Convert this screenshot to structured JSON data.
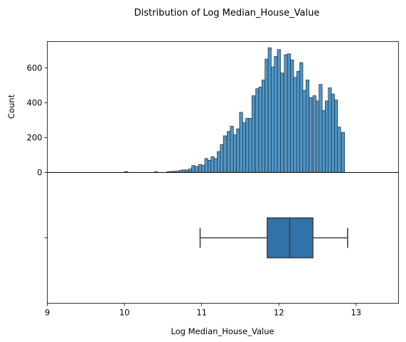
{
  "chart_data": {
    "type": "bar",
    "title": "Distribution of Log Median_House_Value",
    "colors": {
      "hist_fill": "#4c96c9",
      "box_fill": "#3173a8",
      "line": "#404040"
    },
    "histogram": {
      "type": "histogram",
      "ylabel": "Count",
      "xlabel": "",
      "xlim": [
        9.0,
        13.55
      ],
      "ylim": [
        0,
        750
      ],
      "yticks": [
        0,
        200,
        400,
        600
      ],
      "yticklabels": [
        "0",
        "200",
        "400",
        "600"
      ],
      "bin_width": 0.0412,
      "bin_starts": [
        10.0,
        10.39,
        10.55,
        10.59,
        10.63,
        10.67,
        10.71,
        10.75,
        10.79,
        10.83,
        10.87,
        10.91,
        10.96,
        11.0,
        11.04,
        11.08,
        11.12,
        11.16,
        11.2,
        11.24,
        11.28,
        11.33,
        11.37,
        11.41,
        11.45,
        11.49,
        11.53,
        11.57,
        11.61,
        11.65,
        11.7,
        11.74,
        11.78,
        11.82,
        11.86,
        11.9,
        11.94,
        11.98,
        12.02,
        12.07,
        12.11,
        12.15,
        12.19,
        12.23,
        12.27,
        12.31,
        12.35,
        12.39,
        12.44,
        12.48,
        12.52,
        12.56,
        12.6,
        12.64,
        12.68,
        12.72,
        12.76,
        12.81,
        12.85
      ],
      "counts": [
        5,
        4,
        5,
        6,
        7,
        8,
        12,
        15,
        14,
        20,
        40,
        35,
        45,
        42,
        80,
        70,
        90,
        80,
        120,
        160,
        210,
        235,
        265,
        215,
        250,
        345,
        285,
        310,
        310,
        440,
        480,
        490,
        530,
        650,
        715,
        605,
        665,
        705,
        570,
        675,
        680,
        645,
        545,
        580,
        630,
        470,
        530,
        430,
        440,
        410,
        505,
        355,
        410,
        485,
        450,
        415,
        260,
        230,
        0
      ]
    },
    "boxplot": {
      "type": "boxplot",
      "xlabel": "Log Median_House_Value",
      "ytick_labels": [
        ""
      ],
      "xticks": [
        9,
        10,
        11,
        12,
        13
      ],
      "xticklabels": [
        "9",
        "10",
        "11",
        "12",
        "13"
      ],
      "whisker_low": 10.98,
      "q1": 11.85,
      "median": 12.14,
      "q3": 12.44,
      "whisker_high": 12.89
    }
  }
}
